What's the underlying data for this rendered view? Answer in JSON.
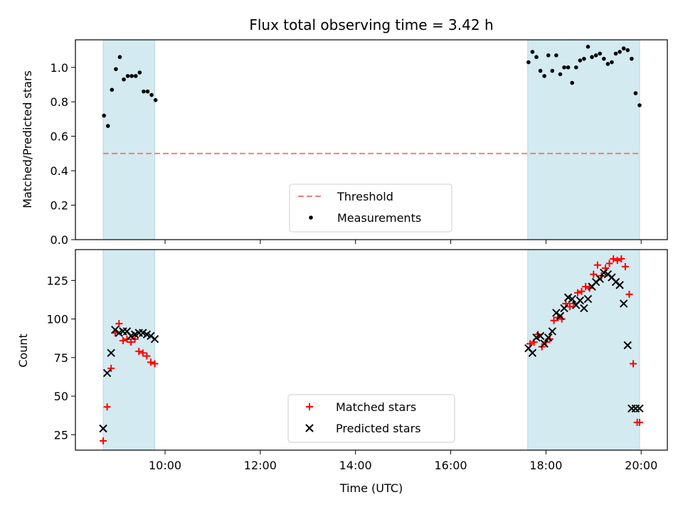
{
  "chart_data": [
    {
      "type": "scatter",
      "title": "Flux total observing time = 3.42 h",
      "xlabel": "",
      "ylabel": "Matched/Predicted stars",
      "ylim": [
        0,
        1.16
      ],
      "yticks": [
        0.0,
        0.2,
        0.4,
        0.6,
        0.8,
        1.0
      ],
      "ytick_labels": [
        "0.0",
        "0.2",
        "0.4",
        "0.6",
        "0.8",
        "1.0"
      ],
      "threshold": {
        "name": "Threshold",
        "value": 0.5,
        "color": "#f08080"
      },
      "shaded_ranges": [
        [
          "08:42",
          "09:47"
        ],
        [
          "17:37",
          "19:58"
        ]
      ],
      "shade_color": "#d3eaf0",
      "legend_position": "lower center",
      "series": [
        {
          "name": "Measurements",
          "color": "#000000",
          "marker": "dot",
          "x": [
            "08:43",
            "08:48",
            "08:53",
            "08:58",
            "09:03",
            "09:08",
            "09:13",
            "09:18",
            "09:23",
            "09:28",
            "09:33",
            "09:38",
            "09:43",
            "09:48",
            "17:38",
            "17:43",
            "17:48",
            "17:53",
            "17:58",
            "18:03",
            "18:08",
            "18:13",
            "18:18",
            "18:23",
            "18:28",
            "18:33",
            "18:38",
            "18:43",
            "18:48",
            "18:53",
            "18:58",
            "19:03",
            "19:08",
            "19:13",
            "19:18",
            "19:23",
            "19:28",
            "19:33",
            "19:38",
            "19:43",
            "19:48",
            "19:53",
            "19:58"
          ],
          "y": [
            0.72,
            0.66,
            0.87,
            0.99,
            1.06,
            0.93,
            0.95,
            0.95,
            0.95,
            0.97,
            0.86,
            0.86,
            0.84,
            0.81,
            1.03,
            1.09,
            1.06,
            0.98,
            0.95,
            1.07,
            0.98,
            1.07,
            0.96,
            1.0,
            1.0,
            0.91,
            1.0,
            1.04,
            1.05,
            1.12,
            1.06,
            1.07,
            1.08,
            1.05,
            1.02,
            1.03,
            1.08,
            1.09,
            1.11,
            1.1,
            1.05,
            0.85,
            0.78
          ]
        }
      ]
    },
    {
      "type": "scatter",
      "xlabel": "Time (UTC)",
      "ylabel": "Count",
      "ylim": [
        15,
        145
      ],
      "yticks": [
        25,
        50,
        75,
        100,
        125
      ],
      "ytick_labels": [
        "25",
        "50",
        "75",
        "100",
        "125"
      ],
      "xlim": [
        "08:07",
        "20:33"
      ],
      "xticks": [
        "10:00",
        "12:00",
        "14:00",
        "16:00",
        "18:00",
        "20:00"
      ],
      "shaded_ranges": [
        [
          "08:42",
          "09:47"
        ],
        [
          "17:37",
          "19:58"
        ]
      ],
      "shade_color": "#d3eaf0",
      "legend_position": "lower center",
      "series": [
        {
          "name": "Matched stars",
          "color": "#ff0000",
          "marker": "plus",
          "x": [
            "08:42",
            "08:47",
            "08:52",
            "08:57",
            "09:02",
            "09:07",
            "09:12",
            "09:17",
            "09:22",
            "09:27",
            "09:32",
            "09:37",
            "09:42",
            "09:47",
            "17:40",
            "17:45",
            "17:50",
            "17:55",
            "18:00",
            "18:05",
            "18:10",
            "18:15",
            "18:20",
            "18:25",
            "18:30",
            "18:35",
            "18:40",
            "18:45",
            "18:50",
            "18:55",
            "19:00",
            "19:05",
            "19:10",
            "19:15",
            "19:20",
            "19:25",
            "19:30",
            "19:35",
            "19:40",
            "19:45",
            "19:50",
            "19:55",
            "19:58"
          ],
          "y": [
            21,
            43,
            68,
            91,
            97,
            86,
            87,
            85,
            87,
            79,
            78,
            76,
            72,
            71,
            84,
            85,
            90,
            82,
            85,
            87,
            99,
            101,
            100,
            110,
            108,
            110,
            117,
            118,
            121,
            120,
            129,
            135,
            128,
            133,
            136,
            139,
            138,
            139,
            134,
            116,
            71,
            33,
            33
          ]
        },
        {
          "name": "Predicted stars",
          "color": "#000000",
          "marker": "x",
          "x": [
            "08:42",
            "08:47",
            "08:52",
            "08:57",
            "09:02",
            "09:07",
            "09:12",
            "09:17",
            "09:22",
            "09:27",
            "09:32",
            "09:37",
            "09:42",
            "09:47",
            "17:38",
            "17:43",
            "17:48",
            "17:53",
            "17:58",
            "18:03",
            "18:08",
            "18:13",
            "18:18",
            "18:23",
            "18:28",
            "18:33",
            "18:38",
            "18:43",
            "18:48",
            "18:53",
            "18:58",
            "19:03",
            "19:08",
            "19:13",
            "19:18",
            "19:23",
            "19:28",
            "19:33",
            "19:38",
            "19:43",
            "19:48",
            "19:53",
            "19:58"
          ],
          "y": [
            29,
            65,
            78,
            93,
            91,
            92,
            92,
            89,
            90,
            91,
            91,
            90,
            89,
            87,
            81,
            78,
            88,
            89,
            84,
            88,
            92,
            104,
            102,
            107,
            114,
            113,
            109,
            112,
            107,
            113,
            121,
            124,
            126,
            130,
            129,
            127,
            124,
            122,
            110,
            83,
            42,
            42,
            42
          ]
        }
      ]
    }
  ]
}
